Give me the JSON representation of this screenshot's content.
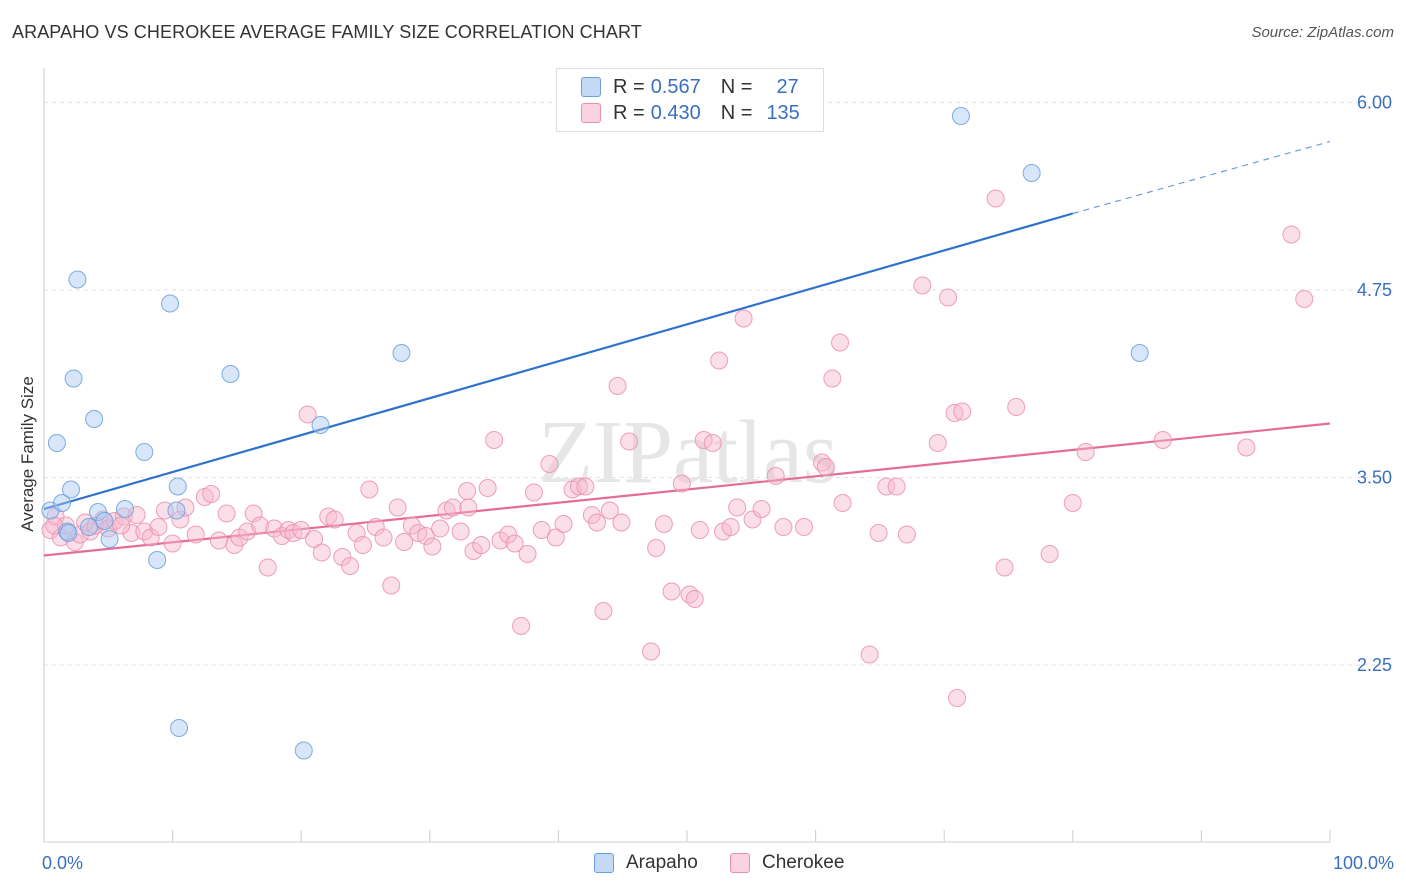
{
  "header": {
    "title": "ARAPAHO VS CHEROKEE AVERAGE FAMILY SIZE CORRELATION CHART",
    "source": "Source: ZipAtlas.com"
  },
  "legend": {
    "rows": [
      {
        "name": "Arapaho",
        "r_label": "R =",
        "r_value": "0.567",
        "n_label": "N =",
        "n_value": "27",
        "color": "#a9c8f2"
      },
      {
        "name": "Cherokee",
        "r_label": "R =",
        "r_value": "0.430",
        "n_label": "N =",
        "n_value": "135",
        "color": "#f7b9cd"
      }
    ]
  },
  "bottom_legend": [
    "Arapaho",
    "Cherokee"
  ],
  "watermark": "ZIPatlas",
  "colors": {
    "arapaho_fill": "#a9c8f2",
    "arapaho_stroke": "#6b9fdc",
    "arapaho_line": "#2f72cc",
    "cherokee_fill": "#f7b9cd",
    "cherokee_stroke": "#eb8fae",
    "cherokee_line": "#e46d97",
    "axis_label": "#3a6fc0",
    "grid": "#e3e3e3"
  },
  "chart_data": {
    "type": "scatter",
    "title": "ARAPAHO VS CHEROKEE AVERAGE FAMILY SIZE CORRELATION CHART",
    "xlabel": "",
    "ylabel": "Average Family Size",
    "xlim": [
      0,
      100
    ],
    "ylim": [
      1.15,
      6.15
    ],
    "y_ticks": [
      2.25,
      3.5,
      4.75,
      6.0
    ],
    "y_tick_labels": [
      "2.25",
      "3.50",
      "4.75",
      "6.00"
    ],
    "x_tick_labels": [
      "0.0%",
      "100.0%"
    ],
    "grid": true,
    "series": [
      {
        "name": "Arapaho",
        "r": 0.567,
        "n": 27,
        "trend": {
          "x0": 0,
          "y0": 3.29,
          "x1": 80,
          "y1": 5.26,
          "dashed_to_x": 100,
          "dashed_to_y": 5.74
        },
        "points": [
          [
            0.5,
            3.28
          ],
          [
            1.0,
            3.73
          ],
          [
            1.4,
            3.33
          ],
          [
            1.8,
            3.14
          ],
          [
            2.1,
            3.42
          ],
          [
            2.3,
            4.16
          ],
          [
            2.6,
            4.82
          ],
          [
            3.5,
            3.17
          ],
          [
            3.9,
            3.89
          ],
          [
            4.2,
            3.27
          ],
          [
            4.7,
            3.21
          ],
          [
            5.1,
            3.09
          ],
          [
            6.3,
            3.29
          ],
          [
            7.8,
            3.67
          ],
          [
            8.8,
            2.95
          ],
          [
            9.8,
            4.66
          ],
          [
            10.3,
            3.28
          ],
          [
            10.4,
            3.44
          ],
          [
            10.5,
            1.83
          ],
          [
            14.5,
            4.19
          ],
          [
            20.2,
            1.68
          ],
          [
            21.5,
            3.85
          ],
          [
            27.8,
            4.33
          ],
          [
            71.3,
            5.91
          ],
          [
            76.8,
            5.53
          ],
          [
            85.2,
            4.33
          ],
          [
            1.9,
            3.13
          ]
        ]
      },
      {
        "name": "Cherokee",
        "r": 0.43,
        "n": 135,
        "trend": {
          "x0": 0,
          "y0": 2.98,
          "x1": 100,
          "y1": 3.86
        },
        "points": [
          [
            0.5,
            3.15
          ],
          [
            0.9,
            3.24
          ],
          [
            1.3,
            3.1
          ],
          [
            1.7,
            3.18
          ],
          [
            2.4,
            3.07
          ],
          [
            2.8,
            3.12
          ],
          [
            3.2,
            3.2
          ],
          [
            3.6,
            3.14
          ],
          [
            4.0,
            3.18
          ],
          [
            4.6,
            3.22
          ],
          [
            5.0,
            3.16
          ],
          [
            5.5,
            3.21
          ],
          [
            6.2,
            3.24
          ],
          [
            6.8,
            3.13
          ],
          [
            7.2,
            3.25
          ],
          [
            7.8,
            3.14
          ],
          [
            8.3,
            3.1
          ],
          [
            8.9,
            3.17
          ],
          [
            9.4,
            3.28
          ],
          [
            10.0,
            3.06
          ],
          [
            10.6,
            3.22
          ],
          [
            11.0,
            3.3
          ],
          [
            11.8,
            3.12
          ],
          [
            12.5,
            3.37
          ],
          [
            13.0,
            3.39
          ],
          [
            13.6,
            3.08
          ],
          [
            14.2,
            3.26
          ],
          [
            14.8,
            3.05
          ],
          [
            15.2,
            3.1
          ],
          [
            15.8,
            3.14
          ],
          [
            16.3,
            3.26
          ],
          [
            16.8,
            3.18
          ],
          [
            17.4,
            2.9
          ],
          [
            17.9,
            3.16
          ],
          [
            18.5,
            3.11
          ],
          [
            19.0,
            3.15
          ],
          [
            19.4,
            3.13
          ],
          [
            20.0,
            3.15
          ],
          [
            20.5,
            3.92
          ],
          [
            21.0,
            3.09
          ],
          [
            21.6,
            3.0
          ],
          [
            22.1,
            3.24
          ],
          [
            22.6,
            3.22
          ],
          [
            23.2,
            2.97
          ],
          [
            23.8,
            2.91
          ],
          [
            24.3,
            3.13
          ],
          [
            24.8,
            3.05
          ],
          [
            25.3,
            3.42
          ],
          [
            25.8,
            3.17
          ],
          [
            26.4,
            3.1
          ],
          [
            27.0,
            2.78
          ],
          [
            27.5,
            3.3
          ],
          [
            28.0,
            3.07
          ],
          [
            28.6,
            3.18
          ],
          [
            29.1,
            3.13
          ],
          [
            29.7,
            3.11
          ],
          [
            30.2,
            3.04
          ],
          [
            30.8,
            3.16
          ],
          [
            31.3,
            3.28
          ],
          [
            31.8,
            3.3
          ],
          [
            32.4,
            3.14
          ],
          [
            32.9,
            3.41
          ],
          [
            33.4,
            3.01
          ],
          [
            34.0,
            3.05
          ],
          [
            34.5,
            3.43
          ],
          [
            35.0,
            3.75
          ],
          [
            35.5,
            3.08
          ],
          [
            36.1,
            3.12
          ],
          [
            36.6,
            3.06
          ],
          [
            37.1,
            2.51
          ],
          [
            37.6,
            2.99
          ],
          [
            38.1,
            3.4
          ],
          [
            38.7,
            3.15
          ],
          [
            39.3,
            3.59
          ],
          [
            39.8,
            3.1
          ],
          [
            40.4,
            3.19
          ],
          [
            41.1,
            3.42
          ],
          [
            41.6,
            3.44
          ],
          [
            42.1,
            3.44
          ],
          [
            42.6,
            3.25
          ],
          [
            43.0,
            3.2
          ],
          [
            43.5,
            2.61
          ],
          [
            44.0,
            3.28
          ],
          [
            44.6,
            4.11
          ],
          [
            44.9,
            3.2
          ],
          [
            45.5,
            3.74
          ],
          [
            47.2,
            2.34
          ],
          [
            47.6,
            3.03
          ],
          [
            48.2,
            3.19
          ],
          [
            48.8,
            2.74
          ],
          [
            49.6,
            3.46
          ],
          [
            50.2,
            2.72
          ],
          [
            50.6,
            2.69
          ],
          [
            51.0,
            3.15
          ],
          [
            51.3,
            3.75
          ],
          [
            52.0,
            3.73
          ],
          [
            52.5,
            4.28
          ],
          [
            52.8,
            3.14
          ],
          [
            53.4,
            3.17
          ],
          [
            53.9,
            3.3
          ],
          [
            54.4,
            4.56
          ],
          [
            55.1,
            3.22
          ],
          [
            55.8,
            3.29
          ],
          [
            56.9,
            3.51
          ],
          [
            57.5,
            3.17
          ],
          [
            59.1,
            3.17
          ],
          [
            60.5,
            3.6
          ],
          [
            60.8,
            3.57
          ],
          [
            61.3,
            4.16
          ],
          [
            61.9,
            4.4
          ],
          [
            62.1,
            3.33
          ],
          [
            64.2,
            2.32
          ],
          [
            64.9,
            3.13
          ],
          [
            65.5,
            3.44
          ],
          [
            66.3,
            3.44
          ],
          [
            67.1,
            3.12
          ],
          [
            68.3,
            4.78
          ],
          [
            69.5,
            3.73
          ],
          [
            70.3,
            4.7
          ],
          [
            70.8,
            3.93
          ],
          [
            71.4,
            3.94
          ],
          [
            71.0,
            2.03
          ],
          [
            74.0,
            5.36
          ],
          [
            74.7,
            2.9
          ],
          [
            75.6,
            3.97
          ],
          [
            78.2,
            2.99
          ],
          [
            80.0,
            3.33
          ],
          [
            81.0,
            3.67
          ],
          [
            87.0,
            3.75
          ],
          [
            93.5,
            3.7
          ],
          [
            97.0,
            5.12
          ],
          [
            98.0,
            4.69
          ],
          [
            0.8,
            3.18
          ],
          [
            6.0,
            3.18
          ],
          [
            33.0,
            3.3
          ]
        ]
      }
    ]
  }
}
